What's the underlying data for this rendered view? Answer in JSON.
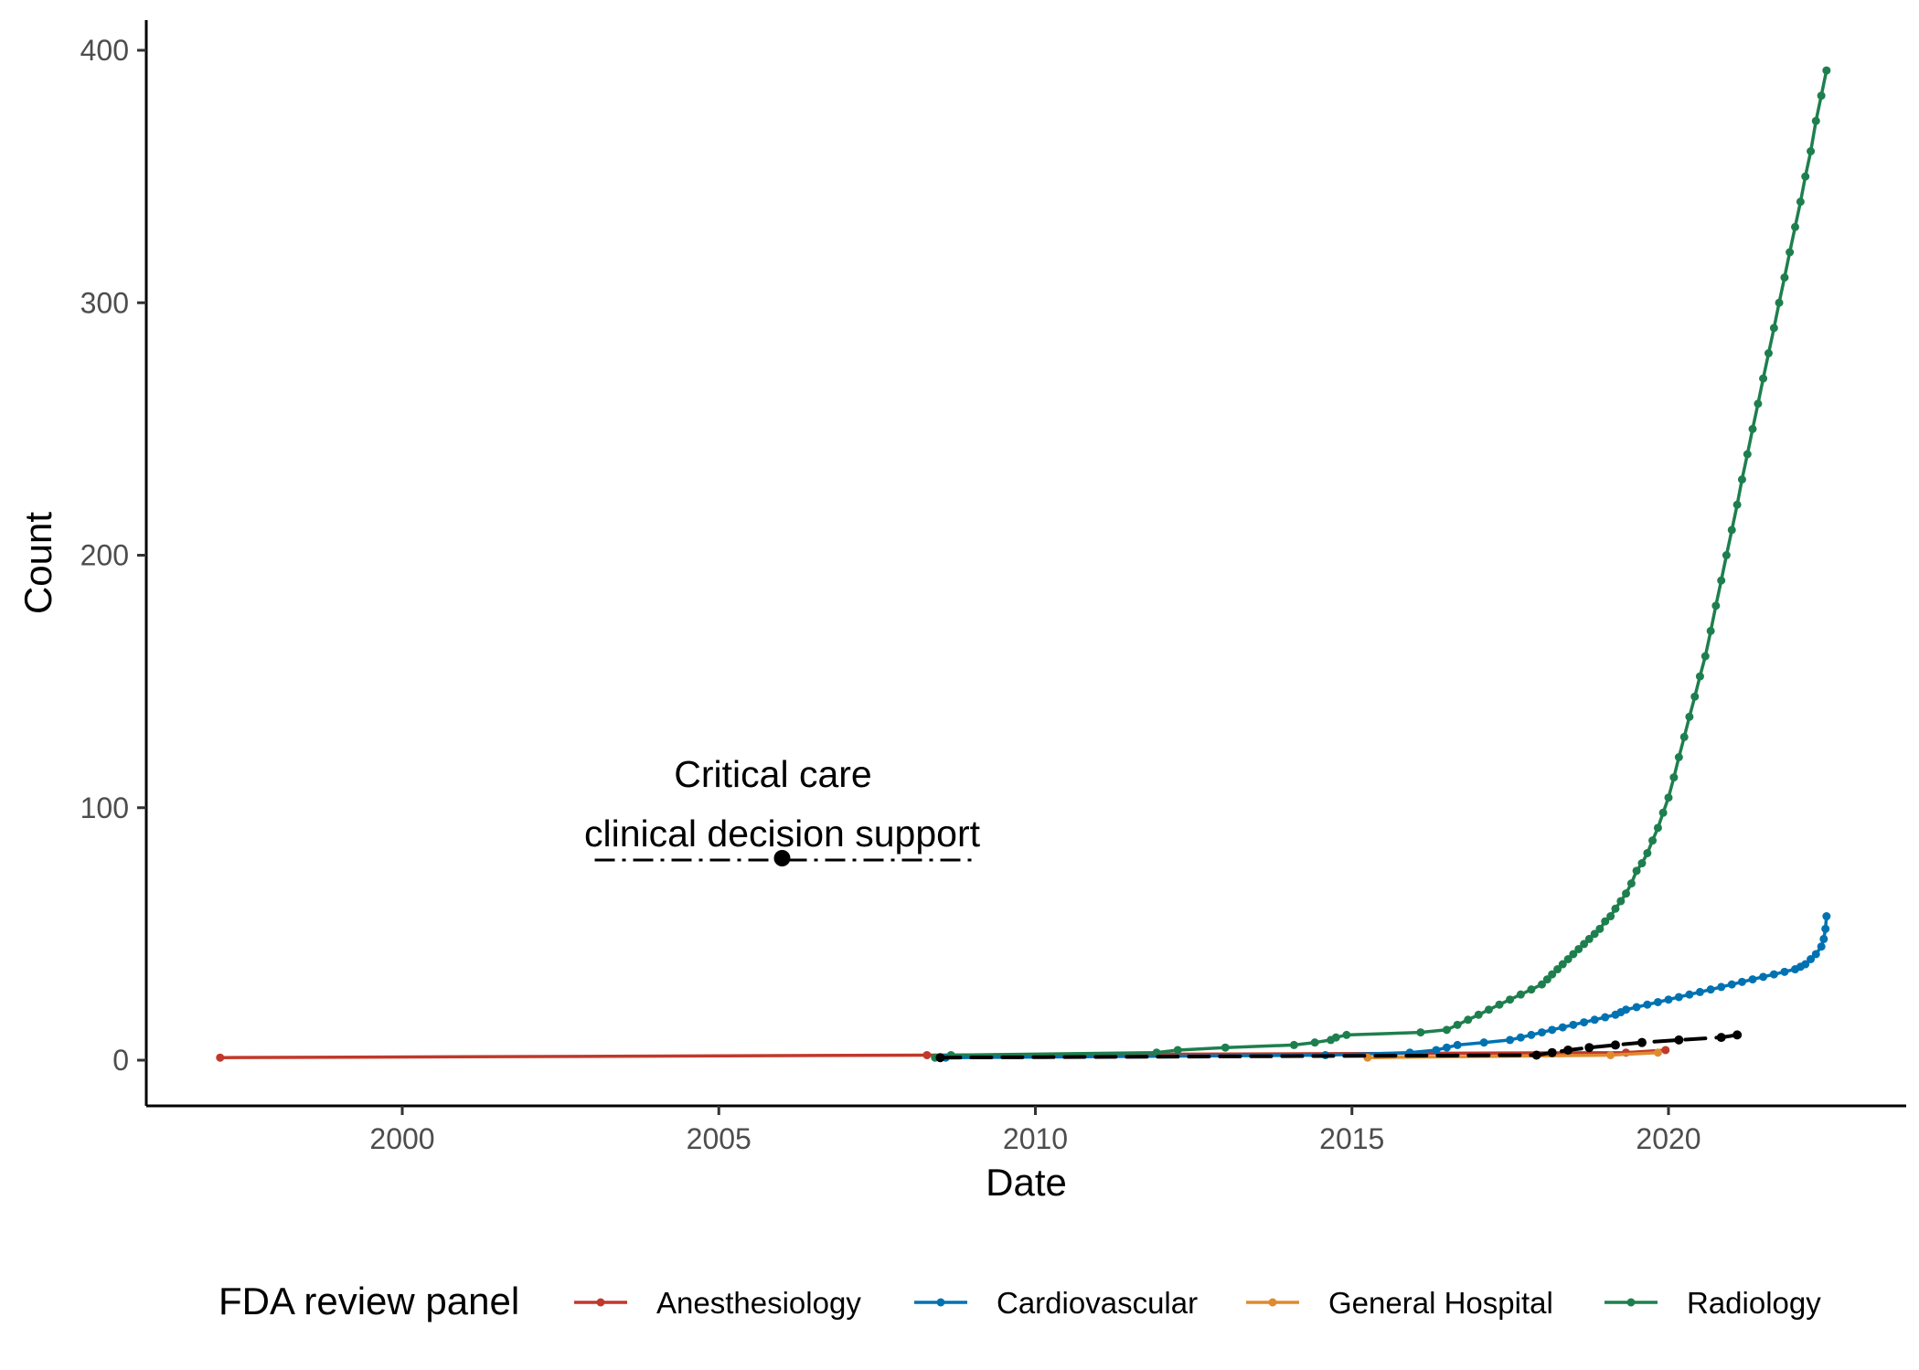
{
  "chart_data": {
    "type": "line",
    "title": "",
    "xlabel": "Date",
    "ylabel": "Count",
    "xlim": [
      "1997-01-01",
      "2023-08-01"
    ],
    "ylim": [
      -18,
      412
    ],
    "x_ticks": [
      "2000",
      "2005",
      "2010",
      "2015",
      "2020"
    ],
    "y_ticks": [
      "0",
      "100",
      "200",
      "300",
      "400"
    ],
    "grid": false,
    "legend": {
      "title": "FDA review panel",
      "position": "bottom"
    },
    "annotation": {
      "line1": "Critical care",
      "line2": "clinical decision support",
      "point": {
        "x": "2006-01-01",
        "y": 80
      },
      "color": "#000000"
    },
    "series": [
      {
        "name": "Anesthesiology",
        "color": "#C0392B",
        "points": [
          [
            "1997-02-15",
            1
          ],
          [
            "2008-04-15",
            2
          ],
          [
            "2019-05-01",
            3
          ],
          [
            "2019-12-15",
            4
          ]
        ]
      },
      {
        "name": "Cardiovascular",
        "color": "#0072B2",
        "points": [
          [
            "2008-08-01",
            1
          ],
          [
            "2014-08-01",
            2
          ],
          [
            "2015-12-01",
            3
          ],
          [
            "2016-05-01",
            4
          ],
          [
            "2016-07-01",
            5
          ],
          [
            "2016-09-01",
            6
          ],
          [
            "2017-02-01",
            7
          ],
          [
            "2017-07-01",
            8
          ],
          [
            "2017-09-01",
            9
          ],
          [
            "2017-11-01",
            10
          ],
          [
            "2018-01-01",
            11
          ],
          [
            "2018-03-01",
            12
          ],
          [
            "2018-05-01",
            13
          ],
          [
            "2018-07-01",
            14
          ],
          [
            "2018-09-01",
            15
          ],
          [
            "2018-11-01",
            16
          ],
          [
            "2019-01-01",
            17
          ],
          [
            "2019-03-01",
            18
          ],
          [
            "2019-04-01",
            19
          ],
          [
            "2019-05-01",
            20
          ],
          [
            "2019-07-01",
            21
          ],
          [
            "2019-09-01",
            22
          ],
          [
            "2019-11-01",
            23
          ],
          [
            "2020-01-01",
            24
          ],
          [
            "2020-03-01",
            25
          ],
          [
            "2020-05-01",
            26
          ],
          [
            "2020-07-01",
            27
          ],
          [
            "2020-09-01",
            28
          ],
          [
            "2020-11-01",
            29
          ],
          [
            "2021-01-01",
            30
          ],
          [
            "2021-03-01",
            31
          ],
          [
            "2021-05-01",
            32
          ],
          [
            "2021-07-01",
            33
          ],
          [
            "2021-09-01",
            34
          ],
          [
            "2021-11-01",
            35
          ],
          [
            "2022-01-01",
            36
          ],
          [
            "2022-02-01",
            37
          ],
          [
            "2022-03-01",
            38
          ],
          [
            "2022-04-01",
            40
          ],
          [
            "2022-05-01",
            42
          ],
          [
            "2022-06-01",
            45
          ],
          [
            "2022-06-15",
            48
          ],
          [
            "2022-06-25",
            52
          ],
          [
            "2022-07-01",
            57
          ]
        ]
      },
      {
        "name": "General Hospital",
        "color": "#E08A2E",
        "points": [
          [
            "2015-04-01",
            1
          ],
          [
            "2019-02-01",
            2
          ],
          [
            "2019-11-01",
            3
          ]
        ]
      },
      {
        "name": "Radiology",
        "color": "#1E7F4E",
        "points": [
          [
            "2008-06-01",
            1
          ],
          [
            "2008-09-01",
            2
          ],
          [
            "2011-12-01",
            3
          ],
          [
            "2012-04-01",
            4
          ],
          [
            "2013-01-01",
            5
          ],
          [
            "2014-02-01",
            6
          ],
          [
            "2014-06-01",
            7
          ],
          [
            "2014-09-01",
            8
          ],
          [
            "2014-10-01",
            9
          ],
          [
            "2014-12-01",
            10
          ],
          [
            "2016-02-01",
            11
          ],
          [
            "2016-07-01",
            12
          ],
          [
            "2016-09-01",
            14
          ],
          [
            "2016-11-01",
            16
          ],
          [
            "2017-01-01",
            18
          ],
          [
            "2017-03-01",
            20
          ],
          [
            "2017-05-01",
            22
          ],
          [
            "2017-07-01",
            24
          ],
          [
            "2017-09-01",
            26
          ],
          [
            "2017-11-01",
            28
          ],
          [
            "2018-01-01",
            30
          ],
          [
            "2018-02-01",
            32
          ],
          [
            "2018-03-01",
            34
          ],
          [
            "2018-04-01",
            36
          ],
          [
            "2018-05-01",
            38
          ],
          [
            "2018-06-01",
            40
          ],
          [
            "2018-07-01",
            42
          ],
          [
            "2018-08-01",
            44
          ],
          [
            "2018-09-01",
            46
          ],
          [
            "2018-10-01",
            48
          ],
          [
            "2018-11-01",
            50
          ],
          [
            "2018-12-01",
            52
          ],
          [
            "2019-01-01",
            55
          ],
          [
            "2019-02-01",
            57
          ],
          [
            "2019-03-01",
            60
          ],
          [
            "2019-04-01",
            63
          ],
          [
            "2019-05-01",
            66
          ],
          [
            "2019-06-01",
            70
          ],
          [
            "2019-07-01",
            75
          ],
          [
            "2019-08-01",
            78
          ],
          [
            "2019-09-01",
            82
          ],
          [
            "2019-10-01",
            87
          ],
          [
            "2019-11-01",
            92
          ],
          [
            "2019-12-01",
            98
          ],
          [
            "2020-01-01",
            104
          ],
          [
            "2020-02-01",
            112
          ],
          [
            "2020-03-01",
            120
          ],
          [
            "2020-04-01",
            128
          ],
          [
            "2020-05-01",
            136
          ],
          [
            "2020-06-01",
            144
          ],
          [
            "2020-07-01",
            152
          ],
          [
            "2020-08-01",
            160
          ],
          [
            "2020-09-01",
            170
          ],
          [
            "2020-10-01",
            180
          ],
          [
            "2020-11-01",
            190
          ],
          [
            "2020-12-01",
            200
          ],
          [
            "2021-01-01",
            210
          ],
          [
            "2021-02-01",
            220
          ],
          [
            "2021-03-01",
            230
          ],
          [
            "2021-04-01",
            240
          ],
          [
            "2021-05-01",
            250
          ],
          [
            "2021-06-01",
            260
          ],
          [
            "2021-07-01",
            270
          ],
          [
            "2021-08-01",
            280
          ],
          [
            "2021-09-01",
            290
          ],
          [
            "2021-10-01",
            300
          ],
          [
            "2021-11-01",
            310
          ],
          [
            "2021-12-01",
            320
          ],
          [
            "2022-01-01",
            330
          ],
          [
            "2022-02-01",
            340
          ],
          [
            "2022-03-01",
            350
          ],
          [
            "2022-04-01",
            360
          ],
          [
            "2022-05-01",
            372
          ],
          [
            "2022-06-01",
            382
          ],
          [
            "2022-07-01",
            392
          ]
        ]
      },
      {
        "name": "",
        "color": "#000000",
        "dashed": true,
        "points": [
          [
            "2008-07-01",
            1
          ],
          [
            "2017-12-01",
            2
          ],
          [
            "2018-03-01",
            3
          ],
          [
            "2018-06-01",
            4
          ],
          [
            "2018-10-01",
            5
          ],
          [
            "2019-03-01",
            6
          ],
          [
            "2019-08-01",
            7
          ],
          [
            "2020-03-01",
            8
          ],
          [
            "2020-11-01",
            9
          ],
          [
            "2021-02-01",
            10
          ]
        ]
      }
    ]
  }
}
